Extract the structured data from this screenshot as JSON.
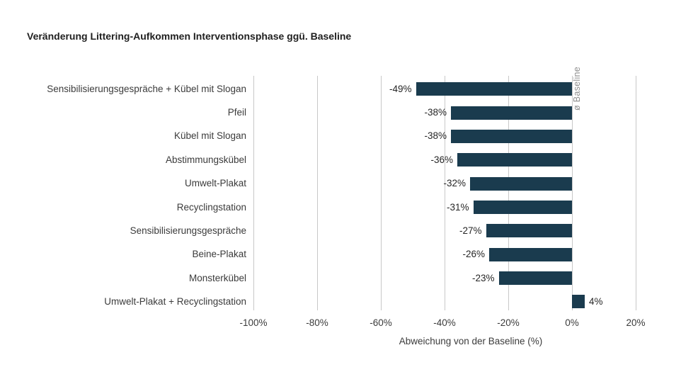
{
  "chart_data": {
    "type": "bar",
    "orientation": "horizontal",
    "title": "Veränderung Littering-Aufkommen Interventionsphase ggü. Baseline",
    "categories": [
      "Sensibilisierungsgespräche + Kübel mit Slogan",
      "Pfeil",
      "Kübel mit Slogan",
      "Abstimmungskübel",
      "Umwelt-Plakat",
      "Recyclingstation",
      "Sensibilisierungsgespräche",
      "Beine-Plakat",
      "Monsterkübel",
      "Umwelt-Plakat + Recyclingstation"
    ],
    "values": [
      -49,
      -38,
      -38,
      -36,
      -32,
      -31,
      -27,
      -26,
      -23,
      4
    ],
    "value_labels": [
      "-49%",
      "-38%",
      "-38%",
      "-36%",
      "-32%",
      "-31%",
      "-27%",
      "-26%",
      "-23%",
      "4%"
    ],
    "xlabel": "Abweichung von der Baseline (%)",
    "x_ticks": [
      -100,
      -80,
      -60,
      -40,
      -20,
      0,
      20
    ],
    "x_tick_labels": [
      "-100%",
      "-80%",
      "-60%",
      "-40%",
      "-20%",
      "0%",
      "20%"
    ],
    "xlim": [
      -100,
      20
    ],
    "grid": true,
    "legend": "none",
    "annotation": "ø Baseline",
    "colors": {
      "bar": "#1a3b4e",
      "gridline": "#c8c8c8",
      "text": "#3b3b3b",
      "value_text": "#262626",
      "title_text": "#1f1f1f",
      "annotation_text": "#8e8e8e",
      "background": "#ffffff"
    }
  }
}
